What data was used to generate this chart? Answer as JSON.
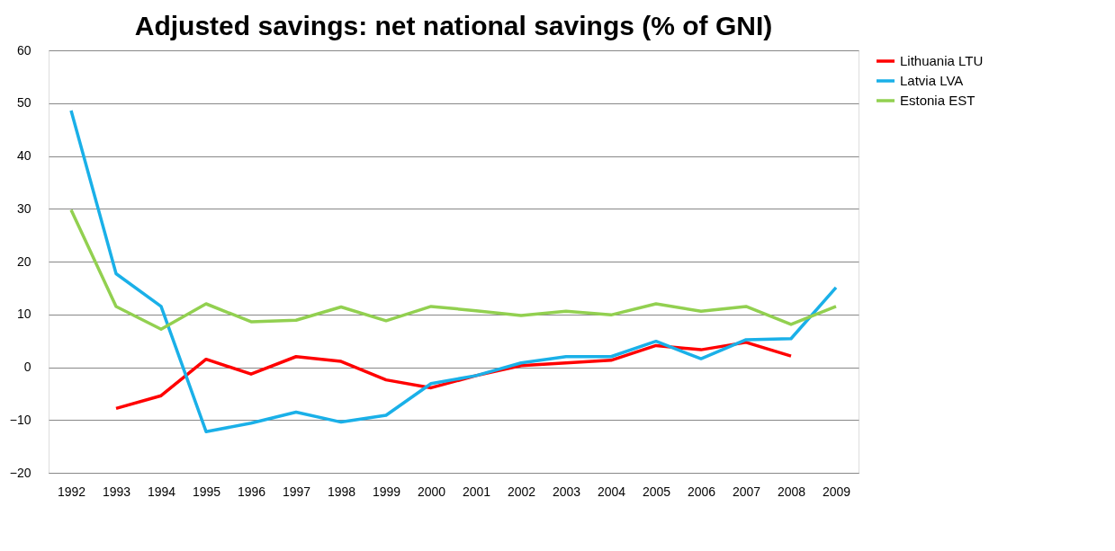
{
  "chart_data": {
    "type": "line",
    "title": "Adjusted savings: net national savings (% of GNI)",
    "categories": [
      "1992",
      "1993",
      "1994",
      "1995",
      "1996",
      "1997",
      "1998",
      "1999",
      "2000",
      "2001",
      "2002",
      "2003",
      "2004",
      "2005",
      "2006",
      "2007",
      "2008",
      "2009"
    ],
    "series": [
      {
        "name": "Lithuania LTU",
        "color": "#ff0000",
        "values": [
          null,
          -7.8,
          -5.4,
          1.5,
          -1.3,
          2.0,
          1.1,
          -2.4,
          -3.9,
          -1.6,
          0.3,
          0.8,
          1.3,
          4.1,
          3.3,
          4.7,
          2.1,
          null
        ]
      },
      {
        "name": "Latvia LVA",
        "color": "#1ab0e8",
        "values": [
          48.6,
          17.7,
          11.5,
          -12.2,
          -10.6,
          -8.5,
          -10.4,
          -9.1,
          -3.1,
          -1.6,
          0.8,
          2.0,
          2.0,
          4.9,
          1.6,
          5.2,
          5.4,
          15.1
        ]
      },
      {
        "name": "Estonia EST",
        "color": "#92d050",
        "values": [
          29.8,
          11.5,
          7.2,
          12.0,
          8.6,
          8.9,
          11.4,
          8.8,
          11.5,
          10.7,
          9.8,
          10.6,
          9.9,
          12.0,
          10.6,
          11.5,
          8.1,
          11.5
        ]
      }
    ],
    "ylim": [
      -20,
      60
    ],
    "yticks": [
      -20,
      -10,
      0,
      10,
      20,
      30,
      40,
      50,
      60
    ],
    "grid": "y",
    "legend": "right",
    "marker": "none",
    "line_style": "solid"
  }
}
